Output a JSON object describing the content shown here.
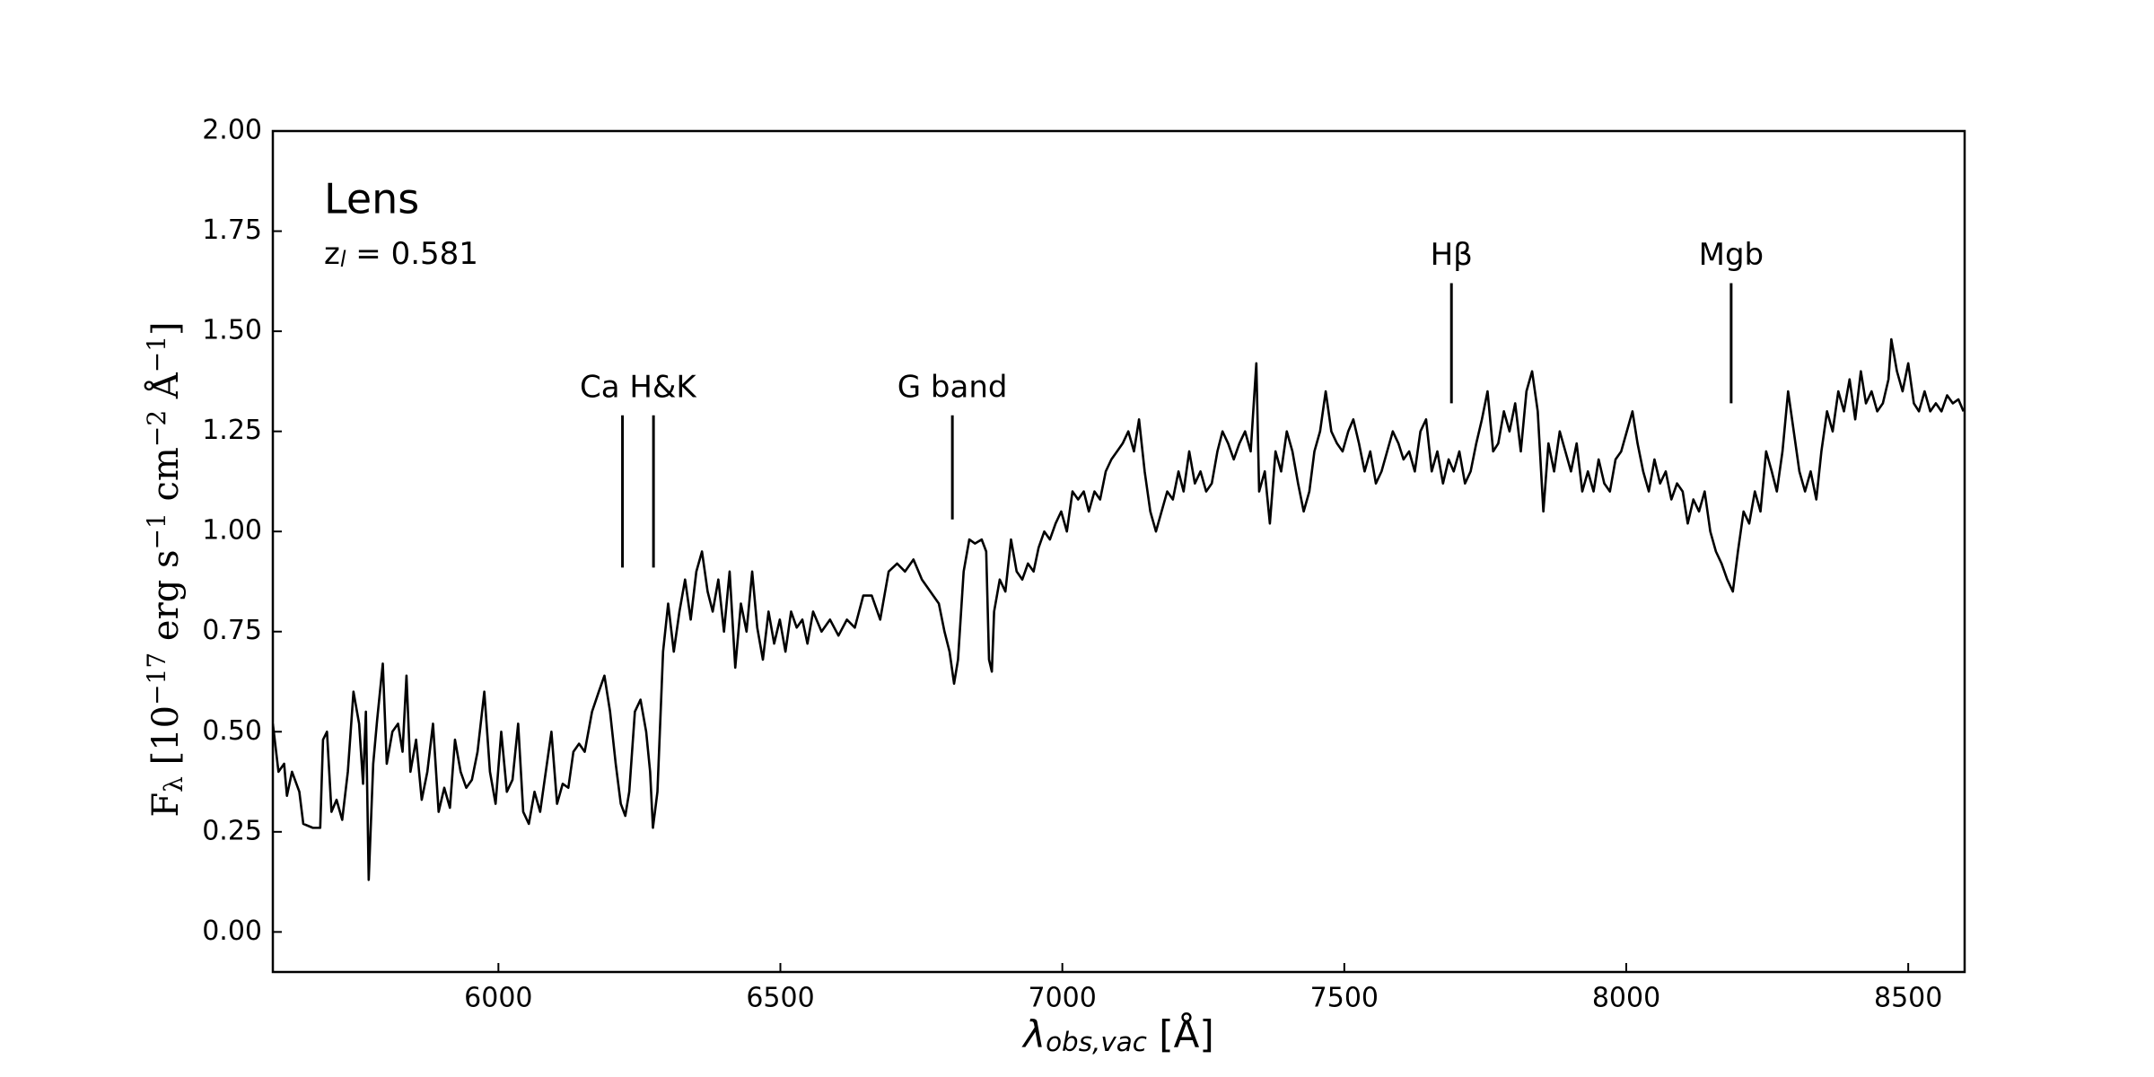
{
  "chart_data": {
    "type": "line",
    "xlabel": [
      {
        "text": "λ"
      },
      {
        "sub": "obs,vac"
      },
      {
        "text": " [Å]"
      }
    ],
    "ylabel": [
      {
        "text": "F"
      },
      {
        "sub": "λ"
      },
      {
        "text": " [10"
      },
      {
        "sup": "−17"
      },
      {
        "text": " erg s"
      },
      {
        "sup": "−1"
      },
      {
        "text": " cm"
      },
      {
        "sup": "−2"
      },
      {
        "text": " Å"
      },
      {
        "sup": "−1"
      },
      {
        "text": "]"
      }
    ],
    "title": "Lens",
    "subtitle": [
      {
        "text": "z"
      },
      {
        "sub": "l"
      },
      {
        "text": " = 0.581"
      }
    ],
    "annotations": [
      {
        "label": "Ca H&K",
        "x": [
          6220,
          6275
        ],
        "y": [
          0.91,
          1.29
        ]
      },
      {
        "label": "G band",
        "x": [
          6805
        ],
        "y": [
          1.03,
          1.29
        ]
      },
      {
        "label": "Hβ",
        "x": [
          7690
        ],
        "y": [
          1.32,
          1.62
        ]
      },
      {
        "label": "Mgb",
        "x": [
          8186
        ],
        "y": [
          1.32,
          1.62
        ]
      }
    ],
    "xlim": [
      5600,
      8600
    ],
    "ylim": [
      -0.1,
      2.0
    ],
    "xticks": [
      6000,
      6500,
      7000,
      7500,
      8000,
      8500
    ],
    "yticks": [
      {
        "value": 0,
        "label": "0.00"
      },
      {
        "value": 0.25,
        "label": "0.25"
      },
      {
        "value": 0.5,
        "label": "0.50"
      },
      {
        "value": 0.75,
        "label": "0.75"
      },
      {
        "value": 1,
        "label": "1.00"
      },
      {
        "value": 1.25,
        "label": "1.25"
      },
      {
        "value": 1.5,
        "label": "1.50"
      },
      {
        "value": 1.75,
        "label": "1.75"
      },
      {
        "value": 2,
        "label": "2.00"
      }
    ],
    "series": [
      {
        "color": "#000000",
        "x": [
          5600,
          5610,
          5620,
          5625,
          5634,
          5647,
          5654,
          5671,
          5684,
          5689,
          5696,
          5704,
          5713,
          5723,
          5733,
          5743,
          5753,
          5760,
          5765,
          5770,
          5778,
          5785,
          5795,
          5802,
          5812,
          5822,
          5830,
          5837,
          5844,
          5854,
          5864,
          5874,
          5884,
          5894,
          5904,
          5914,
          5923,
          5933,
          5943,
          5953,
          5963,
          5975,
          5985,
          5995,
          6005,
          6015,
          6025,
          6035,
          6044,
          6054,
          6064,
          6074,
          6084,
          6094,
          6104,
          6114,
          6124,
          6133,
          6143,
          6153,
          6166,
          6178,
          6188,
          6198,
          6208,
          6217,
          6225,
          6232,
          6242,
          6252,
          6262,
          6269,
          6274,
          6282,
          6292,
          6301,
          6311,
          6321,
          6331,
          6341,
          6351,
          6361,
          6371,
          6380,
          6390,
          6400,
          6410,
          6420,
          6430,
          6440,
          6450,
          6459,
          6469,
          6479,
          6489,
          6499,
          6509,
          6519,
          6529,
          6539,
          6548,
          6558,
          6573,
          6588,
          6603,
          6618,
          6632,
          6647,
          6662,
          6677,
          6692,
          6707,
          6721,
          6736,
          6751,
          6766,
          6781,
          6791,
          6800,
          6808,
          6815,
          6825,
          6835,
          6845,
          6857,
          6865,
          6870,
          6875,
          6879,
          6889,
          6899,
          6909,
          6919,
          6929,
          6939,
          6949,
          6958,
          6968,
          6978,
          6988,
          6998,
          7008,
          7018,
          7028,
          7038,
          7047,
          7057,
          7067,
          7077,
          7087,
          7097,
          7107,
          7117,
          7127,
          7136,
          7146,
          7156,
          7166,
          7176,
          7186,
          7196,
          7206,
          7215,
          7225,
          7235,
          7245,
          7255,
          7265,
          7275,
          7284,
          7294,
          7304,
          7314,
          7324,
          7334,
          7344,
          7349,
          7359,
          7368,
          7378,
          7388,
          7398,
          7408,
          7418,
          7428,
          7438,
          7447,
          7457,
          7467,
          7477,
          7487,
          7497,
          7507,
          7516,
          7526,
          7536,
          7546,
          7556,
          7566,
          7576,
          7586,
          7596,
          7605,
          7615,
          7625,
          7635,
          7645,
          7655,
          7665,
          7675,
          7685,
          7694,
          7704,
          7714,
          7724,
          7734,
          7744,
          7754,
          7764,
          7773,
          7783,
          7793,
          7803,
          7813,
          7823,
          7833,
          7843,
          7853,
          7862,
          7872,
          7882,
          7892,
          7902,
          7912,
          7922,
          7932,
          7942,
          7951,
          7961,
          7971,
          7981,
          7991,
          8001,
          8011,
          8020,
          8030,
          8040,
          8050,
          8060,
          8070,
          8080,
          8090,
          8100,
          8109,
          8119,
          8129,
          8139,
          8149,
          8159,
          8169,
          8179,
          8189,
          8198,
          8208,
          8218,
          8228,
          8238,
          8248,
          8258,
          8267,
          8277,
          8287,
          8297,
          8307,
          8317,
          8327,
          8337,
          8346,
          8356,
          8366,
          8376,
          8386,
          8396,
          8406,
          8416,
          8425,
          8435,
          8445,
          8455,
          8465,
          8470,
          8480,
          8490,
          8500,
          8510,
          8519,
          8529,
          8539,
          8549,
          8559,
          8569,
          8579,
          8589,
          8598
        ],
        "values": [
          0.52,
          0.4,
          0.42,
          0.34,
          0.4,
          0.35,
          0.27,
          0.26,
          0.26,
          0.48,
          0.5,
          0.3,
          0.33,
          0.28,
          0.4,
          0.6,
          0.52,
          0.37,
          0.55,
          0.13,
          0.42,
          0.53,
          0.67,
          0.42,
          0.5,
          0.52,
          0.45,
          0.64,
          0.4,
          0.48,
          0.33,
          0.4,
          0.52,
          0.3,
          0.36,
          0.31,
          0.48,
          0.4,
          0.36,
          0.38,
          0.45,
          0.6,
          0.4,
          0.32,
          0.5,
          0.35,
          0.38,
          0.52,
          0.3,
          0.27,
          0.35,
          0.3,
          0.4,
          0.5,
          0.32,
          0.37,
          0.36,
          0.45,
          0.47,
          0.45,
          0.55,
          0.6,
          0.64,
          0.55,
          0.42,
          0.32,
          0.29,
          0.35,
          0.55,
          0.58,
          0.5,
          0.4,
          0.26,
          0.35,
          0.7,
          0.82,
          0.7,
          0.8,
          0.88,
          0.78,
          0.9,
          0.95,
          0.85,
          0.8,
          0.88,
          0.75,
          0.9,
          0.66,
          0.82,
          0.75,
          0.9,
          0.76,
          0.68,
          0.8,
          0.72,
          0.78,
          0.7,
          0.8,
          0.76,
          0.78,
          0.72,
          0.8,
          0.75,
          0.78,
          0.74,
          0.78,
          0.76,
          0.84,
          0.84,
          0.78,
          0.9,
          0.92,
          0.9,
          0.93,
          0.88,
          0.85,
          0.82,
          0.75,
          0.7,
          0.62,
          0.68,
          0.9,
          0.98,
          0.97,
          0.98,
          0.95,
          0.68,
          0.65,
          0.8,
          0.88,
          0.85,
          0.98,
          0.9,
          0.88,
          0.92,
          0.9,
          0.96,
          1.0,
          0.98,
          1.02,
          1.05,
          1.0,
          1.1,
          1.08,
          1.1,
          1.05,
          1.1,
          1.08,
          1.15,
          1.18,
          1.2,
          1.22,
          1.25,
          1.2,
          1.28,
          1.15,
          1.05,
          1.0,
          1.05,
          1.1,
          1.08,
          1.15,
          1.1,
          1.2,
          1.12,
          1.15,
          1.1,
          1.12,
          1.2,
          1.25,
          1.22,
          1.18,
          1.22,
          1.25,
          1.2,
          1.42,
          1.1,
          1.15,
          1.02,
          1.2,
          1.15,
          1.25,
          1.2,
          1.12,
          1.05,
          1.1,
          1.2,
          1.25,
          1.35,
          1.25,
          1.22,
          1.2,
          1.25,
          1.28,
          1.22,
          1.15,
          1.2,
          1.12,
          1.15,
          1.2,
          1.25,
          1.22,
          1.18,
          1.2,
          1.15,
          1.25,
          1.28,
          1.15,
          1.2,
          1.12,
          1.18,
          1.15,
          1.2,
          1.12,
          1.15,
          1.22,
          1.28,
          1.35,
          1.2,
          1.22,
          1.3,
          1.25,
          1.32,
          1.2,
          1.35,
          1.4,
          1.3,
          1.05,
          1.22,
          1.15,
          1.25,
          1.2,
          1.15,
          1.22,
          1.1,
          1.15,
          1.1,
          1.18,
          1.12,
          1.1,
          1.18,
          1.2,
          1.25,
          1.3,
          1.22,
          1.15,
          1.1,
          1.18,
          1.12,
          1.15,
          1.08,
          1.12,
          1.1,
          1.02,
          1.08,
          1.05,
          1.1,
          1.0,
          0.95,
          0.92,
          0.88,
          0.85,
          0.95,
          1.05,
          1.02,
          1.1,
          1.05,
          1.2,
          1.15,
          1.1,
          1.2,
          1.35,
          1.25,
          1.15,
          1.1,
          1.15,
          1.08,
          1.2,
          1.3,
          1.25,
          1.35,
          1.3,
          1.38,
          1.28,
          1.4,
          1.32,
          1.35,
          1.3,
          1.32,
          1.38,
          1.48,
          1.4,
          1.35,
          1.42,
          1.32,
          1.3,
          1.35,
          1.3,
          1.32,
          1.3,
          1.34,
          1.32,
          1.33,
          1.3
        ]
      }
    ]
  }
}
